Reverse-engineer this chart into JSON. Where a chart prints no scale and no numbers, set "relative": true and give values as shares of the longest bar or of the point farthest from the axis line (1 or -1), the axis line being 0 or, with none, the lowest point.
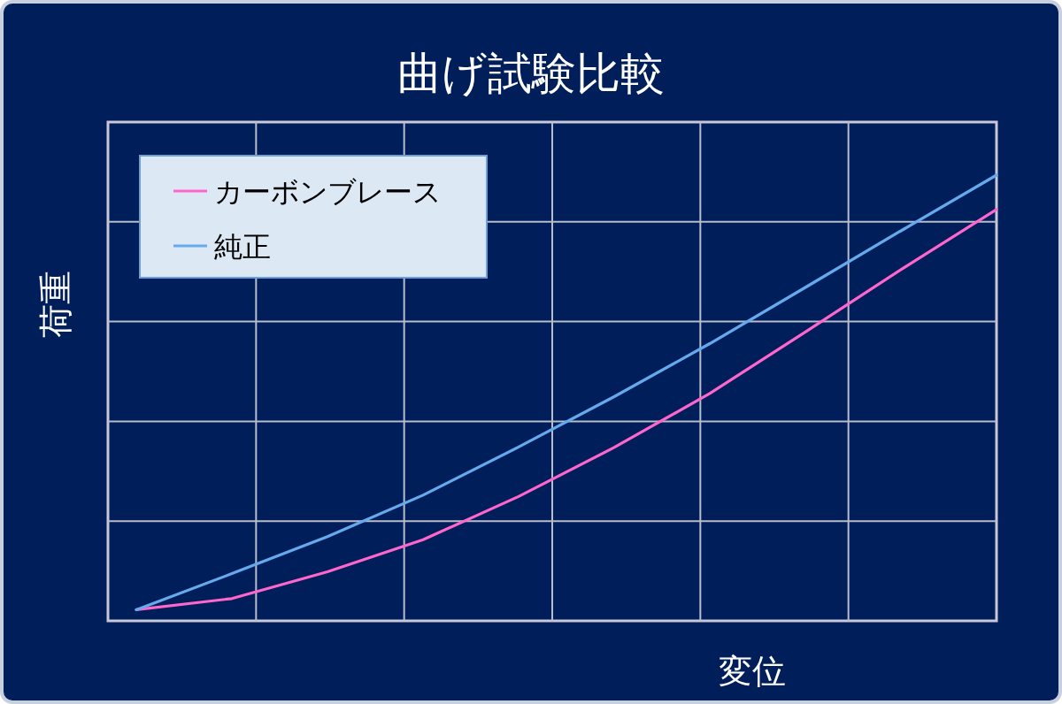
{
  "chart_data": {
    "type": "line",
    "title": "曲げ試験比較",
    "xlabel": "変位",
    "ylabel": "荷重",
    "relative": true,
    "grid": true,
    "legend": "top left",
    "categories": [
      null,
      null,
      null,
      null,
      null,
      null,
      null,
      null,
      null,
      null
    ],
    "series": [
      {
        "name": "カーボンブレース",
        "color": "#ff66cc",
        "values": [
          0.025,
          0.05,
          0.11,
          0.182,
          0.279,
          0.389,
          0.51,
          0.648,
          0.788,
          0.923
        ]
      },
      {
        "name": "純正",
        "color": "#66aaee",
        "values": [
          0.025,
          0.106,
          0.189,
          0.282,
          0.39,
          0.503,
          0.622,
          0.748,
          0.875,
          1
        ]
      }
    ]
  }
}
